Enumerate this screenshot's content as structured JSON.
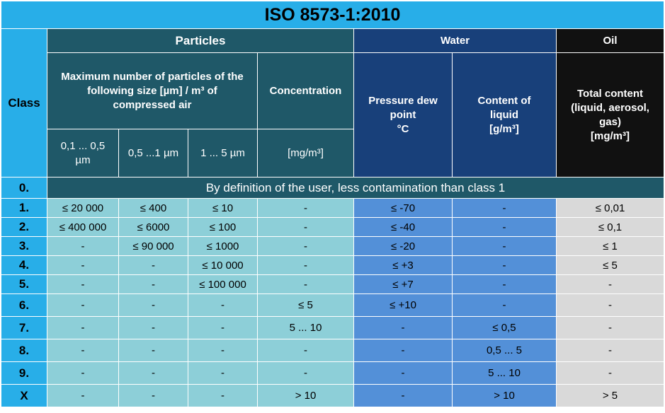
{
  "title": "ISO 8573-1:2010",
  "class_header": "Class",
  "groups": {
    "particles": "Particles",
    "water": "Water",
    "oil": "Oil"
  },
  "subheaders": {
    "max_particles": "Maximum number of particles of the following size [µm] / m³ of compressed air",
    "concentration": "Concentration",
    "concentration_unit": "[mg/m³]",
    "size_1": "0,1 ... 0,5 µm",
    "size_2": "0,5 ...1 µm",
    "size_3": "1 ... 5 µm",
    "pressure_dew_point_1": "Pressure dew point",
    "pressure_dew_point_2": "°C",
    "content_liquid_1": "Content of liquid",
    "content_liquid_2": "[g/m³]",
    "oil_total_1": "Total content (liquid, aerosol, gas)",
    "oil_total_2": "[mg/m³]"
  },
  "row_zero": {
    "class": "0.",
    "text": "By definition of the user, less contamination than class 1"
  },
  "rows": [
    {
      "class": "1.",
      "cells": [
        "≤ 20 000",
        "≤ 400",
        "≤ 10",
        "-",
        "≤ -70",
        "-",
        "≤ 0,01"
      ]
    },
    {
      "class": "2.",
      "cells": [
        "≤ 400 000",
        "≤ 6000",
        "≤ 100",
        "-",
        "≤ -40",
        "-",
        "≤ 0,1"
      ]
    },
    {
      "class": "3.",
      "cells": [
        "-",
        "≤ 90 000",
        "≤ 1000",
        "-",
        "≤ -20",
        "-",
        "≤ 1"
      ]
    },
    {
      "class": "4.",
      "cells": [
        "-",
        "-",
        "≤ 10 000",
        "-",
        "≤ +3",
        "-",
        "≤ 5"
      ]
    },
    {
      "class": "5.",
      "cells": [
        "-",
        "-",
        "≤ 100 000",
        "-",
        "≤ +7",
        "-",
        "-"
      ]
    },
    {
      "class": "6.",
      "cells": [
        "-",
        "-",
        "-",
        "≤ 5",
        "≤ +10",
        "-",
        "-"
      ]
    },
    {
      "class": "7.",
      "cells": [
        "-",
        "-",
        "-",
        "5 ... 10",
        "-",
        "≤ 0,5",
        "-"
      ]
    },
    {
      "class": "8.",
      "cells": [
        "-",
        "-",
        "-",
        "-",
        "-",
        "0,5 ... 5",
        "-"
      ]
    },
    {
      "class": "9.",
      "cells": [
        "-",
        "-",
        "-",
        "-",
        "-",
        "5 ... 10",
        "-"
      ]
    },
    {
      "class": "X",
      "cells": [
        "-",
        "-",
        "-",
        "> 10",
        "-",
        "> 10",
        "> 5"
      ]
    }
  ]
}
